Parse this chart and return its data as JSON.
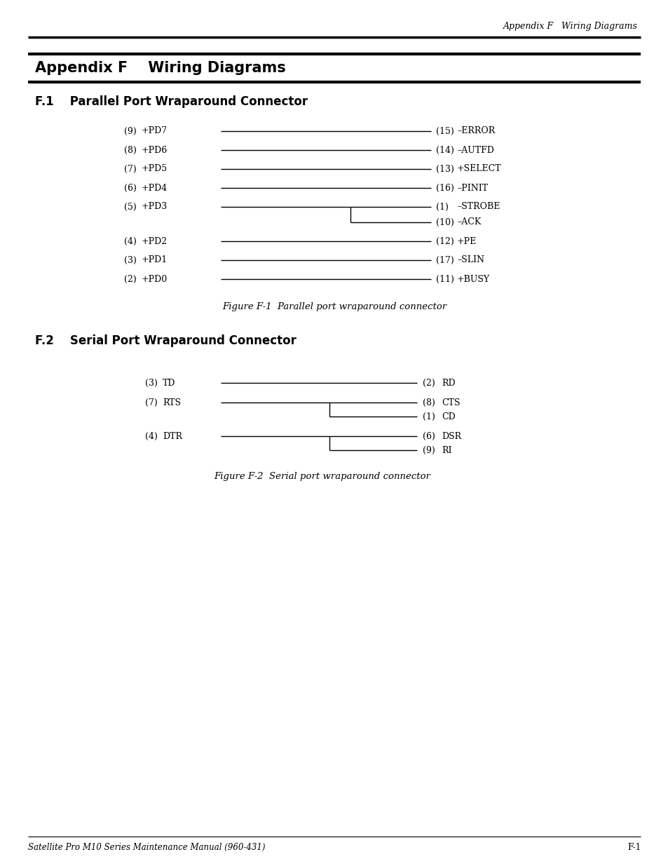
{
  "page_header": "Appendix F   Wiring Diagrams",
  "main_title": "Appendix F    Wiring Diagrams",
  "section1_title": "F.1    Parallel Port Wraparound Connector",
  "section2_title": "F.2    Serial Port Wraparound Connector",
  "fig1_caption": "Figure F-1  Parallel port wraparound connector",
  "fig2_caption": "Figure F-2  Serial port wraparound connector",
  "footer_left": "Satellite Pro M10 Series Maintenance Manual (960-431)",
  "footer_right": "F-1",
  "parallel_connections": [
    {
      "left_pin": "(9)",
      "left_label": "+PD7",
      "right_pin": "(15)",
      "right_label": "–ERROR",
      "type": "direct"
    },
    {
      "left_pin": "(8)",
      "left_label": "+PD6",
      "right_pin": "(14)",
      "right_label": "–AUTFD",
      "type": "direct"
    },
    {
      "left_pin": "(7)",
      "left_label": "+PD5",
      "right_pin": "(13)",
      "right_label": "+SELECT",
      "type": "direct"
    },
    {
      "left_pin": "(6)",
      "left_label": "+PD4",
      "right_pin": "(16)",
      "right_label": "–PINIT",
      "type": "direct"
    },
    {
      "left_pin": "(5)",
      "left_label": "+PD3",
      "right_pin_top": "(1)",
      "right_label_top": "–STROBE",
      "right_pin_bot": "(10)",
      "right_label_bot": "–ACK",
      "type": "split"
    },
    {
      "left_pin": "(4)",
      "left_label": "+PD2",
      "right_pin": "(12)",
      "right_label": "+PE",
      "type": "direct"
    },
    {
      "left_pin": "(3)",
      "left_label": "+PD1",
      "right_pin": "(17)",
      "right_label": "–SLIN",
      "type": "direct"
    },
    {
      "left_pin": "(2)",
      "left_label": "+PD0",
      "right_pin": "(11)",
      "right_label": "+BUSY",
      "type": "direct"
    }
  ],
  "serial_connections": [
    {
      "left_pin": "(3)",
      "left_label": "TD",
      "right_pin": "(2)",
      "right_label": "RD",
      "type": "direct"
    },
    {
      "left_pin": "(7)",
      "left_label": "RTS",
      "right_pin_top": "(8)",
      "right_label_top": "CTS",
      "right_pin_bot": "(1)",
      "right_label_bot": "CD",
      "type": "split"
    },
    {
      "left_pin": "(4)",
      "left_label": "DTR",
      "right_pin_top": "(6)",
      "right_label_top": "DSR",
      "right_pin_bot": "(9)",
      "right_label_bot": "RI",
      "type": "split"
    }
  ]
}
